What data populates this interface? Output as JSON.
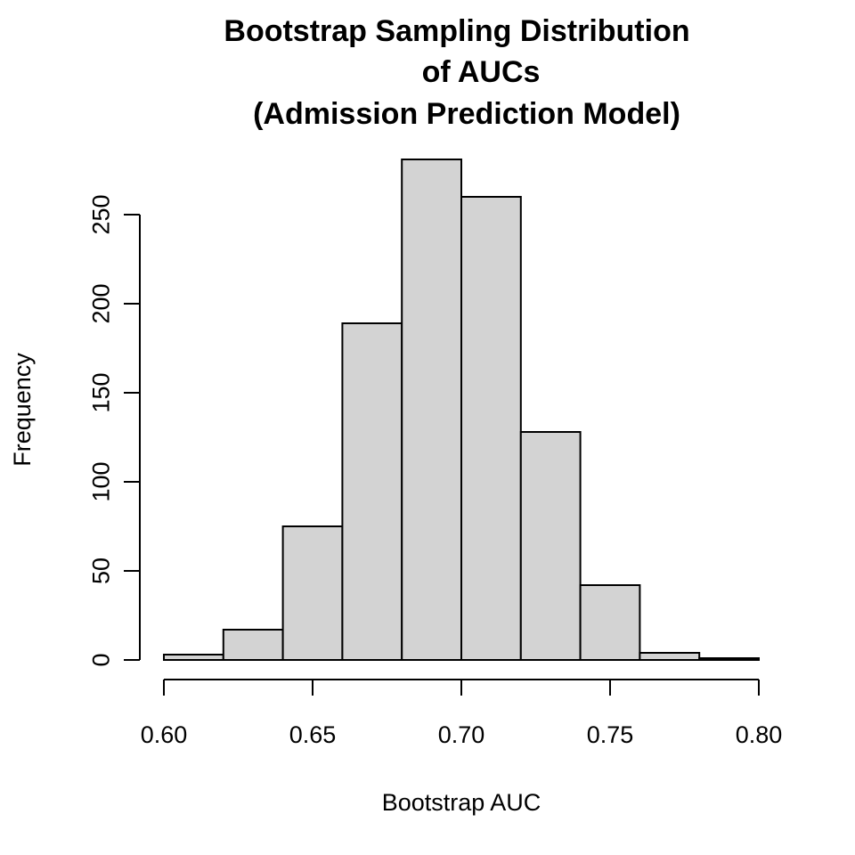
{
  "chart_data": {
    "type": "bar",
    "title_lines": [
      "Bootstrap Sampling Distribution",
      "of AUCs",
      "(Admission Prediction Model)"
    ],
    "xlabel": "Bootstrap AUC",
    "ylabel": "Frequency",
    "bins": [
      {
        "x0": 0.6,
        "x1": 0.62,
        "count": 3
      },
      {
        "x0": 0.62,
        "x1": 0.64,
        "count": 17
      },
      {
        "x0": 0.64,
        "x1": 0.66,
        "count": 75
      },
      {
        "x0": 0.66,
        "x1": 0.68,
        "count": 189
      },
      {
        "x0": 0.68,
        "x1": 0.7,
        "count": 281
      },
      {
        "x0": 0.7,
        "x1": 0.72,
        "count": 260
      },
      {
        "x0": 0.72,
        "x1": 0.74,
        "count": 128
      },
      {
        "x0": 0.74,
        "x1": 0.76,
        "count": 42
      },
      {
        "x0": 0.76,
        "x1": 0.78,
        "count": 4
      },
      {
        "x0": 0.78,
        "x1": 0.8,
        "count": 1
      }
    ],
    "xlim": [
      0.6,
      0.8
    ],
    "ylim": [
      0,
      281
    ],
    "x_ticks": [
      0.6,
      0.65,
      0.7,
      0.75,
      0.8
    ],
    "x_tick_labels": [
      "0.60",
      "0.65",
      "0.70",
      "0.75",
      "0.80"
    ],
    "y_ticks": [
      0,
      50,
      100,
      150,
      200,
      250
    ],
    "y_tick_labels": [
      "0",
      "50",
      "100",
      "150",
      "200",
      "250"
    ],
    "bar_color": "#d3d3d3",
    "grid": false
  }
}
